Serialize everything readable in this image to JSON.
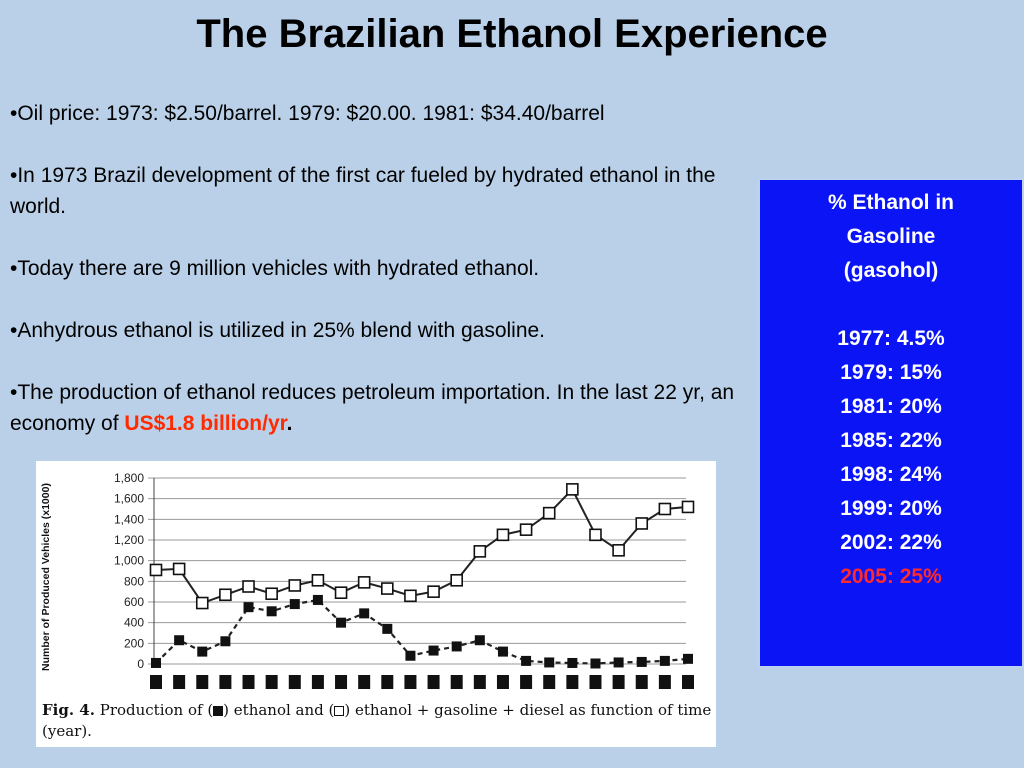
{
  "title": "The Brazilian Ethanol Experience",
  "bullets": {
    "b1": "•Oil price: 1973: $2.50/barrel. 1979: $20.00. 1981: $34.40/barrel",
    "b2": "•In 1973 Brazil development of the first car fueled by hydrated ethanol in the world.",
    "b3": "•Today there are 9 million vehicles with hydrated ethanol.",
    "b4": "•Anhydrous ethanol is utilized in 25% blend with gasoline.",
    "b5_text": "•The production of ethanol reduces petroleum importation. In the last 22 yr, an economy of ",
    "b5_highlight": "US$1.8 billion/yr",
    "b5_end": "."
  },
  "colors": {
    "background": "#b9d0e8",
    "box": "#0a14f5",
    "highlight": "#ff2a00"
  },
  "ethanol_box": {
    "heading1": "% Ethanol in",
    "heading2": "Gasoline",
    "heading3": "(gasohol)",
    "rows": [
      "1977: 4.5%",
      "1979:  15%",
      "1981:  20%",
      "1985:  22%",
      "1998:  24%",
      "1999: 20%",
      "2002: 22%"
    ],
    "last_row": "2005: 25%"
  },
  "figure": {
    "caption_fig": "Fig. 4.",
    "caption_a": " Production of (",
    "caption_b": ") ethanol and (",
    "caption_c": ") ethanol + gasoline + diesel as function of time (year).",
    "ylabel": "Number of Produced Vehicles (x1000)"
  },
  "chart_data": {
    "type": "line",
    "ylabel": "Number of Produced Vehicles (x1000)",
    "ylim": [
      0,
      1800
    ],
    "yticks": [
      "0",
      "200",
      "400",
      "600",
      "800",
      "1,000",
      "1,200",
      "1,400",
      "1,600",
      "1,800"
    ],
    "grid": true,
    "x_categories_count": 24,
    "series": [
      {
        "name": "ethanol + gasoline + diesel",
        "marker": "open-square",
        "line": "solid",
        "values": [
          910,
          920,
          590,
          670,
          750,
          680,
          760,
          810,
          690,
          790,
          730,
          660,
          700,
          810,
          1090,
          1250,
          1300,
          1460,
          1690,
          1250,
          1100,
          1360,
          1500,
          1520
        ]
      },
      {
        "name": "ethanol",
        "marker": "filled-square",
        "line": "dashed",
        "values": [
          10,
          230,
          120,
          220,
          550,
          510,
          580,
          620,
          400,
          490,
          340,
          80,
          130,
          170,
          230,
          120,
          30,
          15,
          10,
          5,
          15,
          20,
          30,
          50
        ]
      }
    ]
  }
}
